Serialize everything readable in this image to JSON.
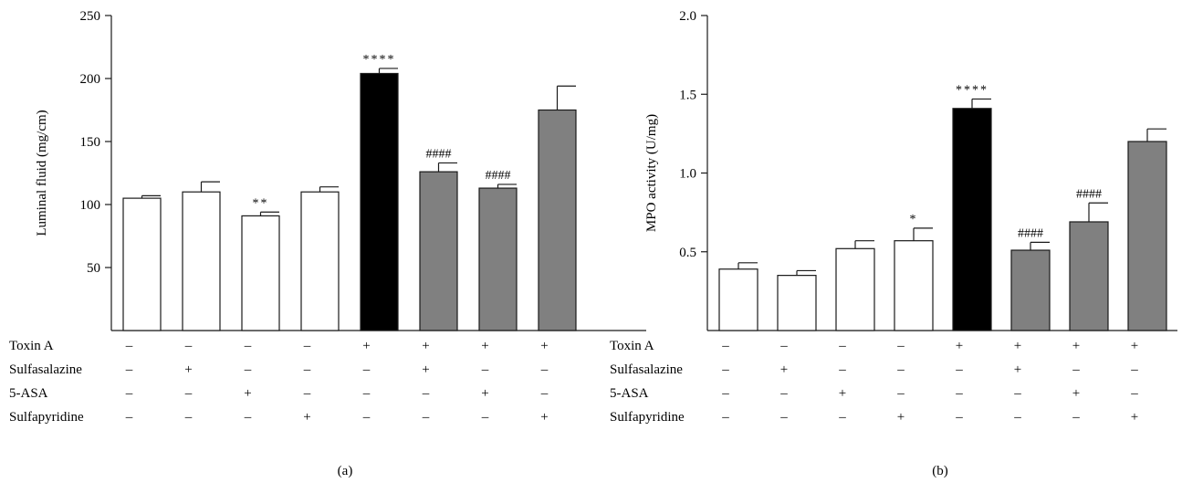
{
  "chart_data": [
    {
      "type": "bar",
      "panel_label": "(a)",
      "ylabel": "Luminal fluid (mg/cm)",
      "ylim": [
        0,
        250
      ],
      "yticks": [
        50,
        100,
        150,
        200,
        250
      ],
      "bars": [
        {
          "value": 105,
          "error": 2,
          "fill": "white",
          "annotation": ""
        },
        {
          "value": 110,
          "error": 8,
          "fill": "white",
          "annotation": ""
        },
        {
          "value": 91,
          "error": 3,
          "fill": "white",
          "annotation": "**"
        },
        {
          "value": 110,
          "error": 4,
          "fill": "white",
          "annotation": ""
        },
        {
          "value": 204,
          "error": 4,
          "fill": "black",
          "annotation": "****"
        },
        {
          "value": 126,
          "error": 7,
          "fill": "gray",
          "annotation": "####"
        },
        {
          "value": 113,
          "error": 3,
          "fill": "gray",
          "annotation": "####"
        },
        {
          "value": 175,
          "error": 19,
          "fill": "gray",
          "annotation": ""
        }
      ],
      "conditions": [
        {
          "label": "Toxin A",
          "values": [
            "–",
            "–",
            "–",
            "–",
            "+",
            "+",
            "+",
            "+"
          ]
        },
        {
          "label": "Sulfasalazine",
          "values": [
            "–",
            "+",
            "–",
            "–",
            "–",
            "+",
            "–",
            "–"
          ]
        },
        {
          "label": "5-ASA",
          "values": [
            "–",
            "–",
            "+",
            "–",
            "–",
            "–",
            "+",
            "–"
          ]
        },
        {
          "label": "Sulfapyridine",
          "values": [
            "–",
            "–",
            "–",
            "+",
            "–",
            "–",
            "–",
            "+"
          ]
        }
      ]
    },
    {
      "type": "bar",
      "panel_label": "(b)",
      "ylabel": "MPO activity (U/mg)",
      "ylim": [
        0,
        2.0
      ],
      "yticks": [
        0.5,
        1.0,
        1.5,
        2.0
      ],
      "bars": [
        {
          "value": 0.39,
          "error": 0.04,
          "fill": "white",
          "annotation": ""
        },
        {
          "value": 0.35,
          "error": 0.03,
          "fill": "white",
          "annotation": ""
        },
        {
          "value": 0.52,
          "error": 0.05,
          "fill": "white",
          "annotation": ""
        },
        {
          "value": 0.57,
          "error": 0.08,
          "fill": "white",
          "annotation": "*"
        },
        {
          "value": 1.41,
          "error": 0.06,
          "fill": "black",
          "annotation": "****"
        },
        {
          "value": 0.51,
          "error": 0.05,
          "fill": "gray",
          "annotation": "####"
        },
        {
          "value": 0.69,
          "error": 0.12,
          "fill": "gray",
          "annotation": "####"
        },
        {
          "value": 1.2,
          "error": 0.08,
          "fill": "gray",
          "annotation": ""
        }
      ],
      "conditions": [
        {
          "label": "Toxin A",
          "values": [
            "–",
            "–",
            "–",
            "–",
            "+",
            "+",
            "+",
            "+"
          ]
        },
        {
          "label": "Sulfasalazine",
          "values": [
            "–",
            "+",
            "–",
            "–",
            "–",
            "+",
            "–",
            "–"
          ]
        },
        {
          "label": "5-ASA",
          "values": [
            "–",
            "–",
            "+",
            "–",
            "–",
            "–",
            "+",
            "–"
          ]
        },
        {
          "label": "Sulfapyridine",
          "values": [
            "–",
            "–",
            "–",
            "+",
            "–",
            "–",
            "–",
            "+"
          ]
        }
      ]
    }
  ],
  "colors": {
    "white": "#ffffff",
    "black": "#000000",
    "gray": "#808080",
    "stroke": "#1a1a1a"
  }
}
